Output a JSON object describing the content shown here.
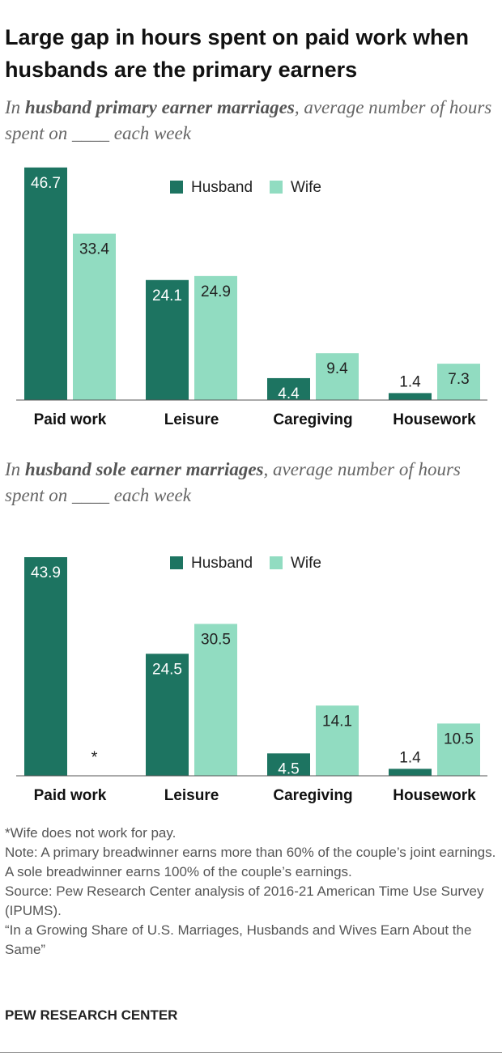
{
  "title": "Large gap in hours spent on paid work when husbands are the primary earners",
  "chart_data": [
    {
      "type": "bar",
      "subtitle_parts": [
        "In ",
        "husband primary earner marriages",
        ", average number of hours spent on ____ each week"
      ],
      "categories": [
        "Paid work",
        "Leisure",
        "Caregiving",
        "Housework"
      ],
      "series": [
        {
          "name": "Husband",
          "color": "#1d7461",
          "values": [
            46.7,
            24.1,
            4.4,
            1.4
          ]
        },
        {
          "name": "Wife",
          "color": "#91dcc1",
          "values": [
            33.4,
            24.9,
            9.4,
            7.3
          ]
        }
      ]
    },
    {
      "type": "bar",
      "subtitle_parts": [
        "In ",
        "husband sole earner marriages",
        ", average number of hours spent on ____ each week"
      ],
      "categories": [
        "Paid work",
        "Leisure",
        "Caregiving",
        "Housework"
      ],
      "series": [
        {
          "name": "Husband",
          "color": "#1d7461",
          "values": [
            43.9,
            24.5,
            4.5,
            1.4
          ]
        },
        {
          "name": "Wife",
          "color": "#91dcc1",
          "values": [
            null,
            30.5,
            14.1,
            10.5
          ],
          "value_labels": [
            "*",
            "30.5",
            "14.1",
            "10.5"
          ]
        }
      ]
    }
  ],
  "notes": [
    "*Wife does not work for pay.",
    "Note: A primary breadwinner earns more than 60% of the couple’s joint earnings. A sole breadwinner earns 100% of the couple’s earnings.",
    "Source: Pew Research Center analysis of 2016-21 American Time Use Survey (IPUMS).",
    "“In a Growing Share of U.S. Marriages, Husbands and Wives Earn About the Same”"
  ],
  "footer": "PEW RESEARCH CENTER"
}
